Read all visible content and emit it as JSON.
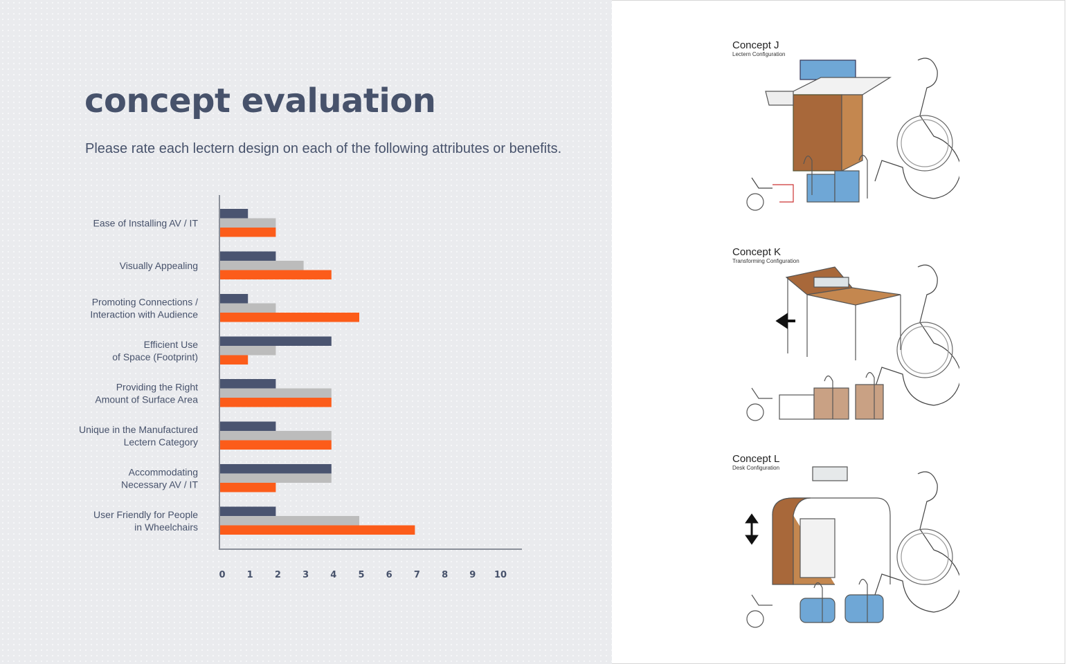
{
  "page": {
    "title": "concept evaluation",
    "subtitle": "Please rate each lectern design on each of the following attributes or benefits."
  },
  "colors": {
    "series_dark": "#4a5470",
    "series_gray": "#bcbcbc",
    "series_orange": "#fc5c1a",
    "text": "#47526b"
  },
  "chart_data": {
    "type": "bar",
    "orientation": "horizontal",
    "categories": [
      [
        "Ease of Installing AV / IT"
      ],
      [
        "Visually Appealing"
      ],
      [
        "Promoting Connections /",
        "Interaction with Audience"
      ],
      [
        "Efficient Use",
        "of Space (Footprint)"
      ],
      [
        "Providing the Right",
        "Amount of Surface Area"
      ],
      [
        "Unique in the Manufactured",
        "Lectern Category"
      ],
      [
        "Accommodating",
        "Necessary AV / IT"
      ],
      [
        "User Friendly for People",
        "in Wheelchairs"
      ]
    ],
    "series": [
      {
        "values": [
          1,
          2,
          1,
          4,
          2,
          2,
          4,
          2
        ],
        "color": "#4a5470"
      },
      {
        "values": [
          2,
          3,
          2,
          2,
          4,
          4,
          4,
          5
        ],
        "color": "#bcbcbc"
      },
      {
        "values": [
          2,
          4,
          5,
          1,
          4,
          4,
          2,
          7
        ],
        "color": "#fc5c1a"
      }
    ],
    "xticks": [
      0,
      1,
      2,
      3,
      4,
      5,
      6,
      7,
      8,
      9,
      10
    ],
    "xlim": [
      0,
      10
    ],
    "grid": false,
    "legend": "none"
  },
  "concepts": [
    {
      "name": "Concept J",
      "config": "Lectern Configuration",
      "icon": "lectern-sketch-icon"
    },
    {
      "name": "Concept K",
      "config": "Transforming Configuration",
      "icon": "transforming-desk-sketch-icon"
    },
    {
      "name": "Concept L",
      "config": "Desk Configuration",
      "icon": "desk-sketch-icon"
    }
  ]
}
